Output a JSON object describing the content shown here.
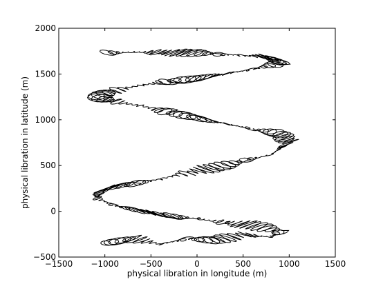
{
  "chart_data": {
    "type": "line",
    "title": "",
    "xlabel": "physical libration in longitude (m)",
    "ylabel": "physical libration in latitude (m)",
    "xlim": [
      -1500,
      1500
    ],
    "ylim": [
      -500,
      2000
    ],
    "xticks": [
      -1500,
      -1000,
      -500,
      0,
      500,
      1000,
      1500
    ],
    "yticks": [
      -500,
      0,
      500,
      1000,
      1500,
      2000
    ],
    "xtick_labels": [
      "−1500",
      "−1000",
      "−500",
      "0",
      "500",
      "1000",
      "1500"
    ],
    "ytick_labels": [
      "−500",
      "0",
      "500",
      "1000",
      "1500",
      "2000"
    ],
    "grid": false,
    "legend": "none",
    "line_color": "#000000",
    "series": [
      {
        "description_points": [
          {
            "x": -1000,
            "y": -350
          },
          {
            "x": -700,
            "y": -300
          },
          {
            "x": -400,
            "y": -360
          },
          {
            "x": -100,
            "y": -300
          },
          {
            "x": 200,
            "y": -320
          },
          {
            "x": 500,
            "y": -250
          },
          {
            "x": 800,
            "y": -280
          },
          {
            "x": 900,
            "y": -220
          },
          {
            "x": 600,
            "y": -150
          },
          {
            "x": 300,
            "y": -120
          },
          {
            "x": 0,
            "y": -80
          },
          {
            "x": -300,
            "y": -50
          },
          {
            "x": -600,
            "y": 0
          },
          {
            "x": -900,
            "y": 60
          },
          {
            "x": -1100,
            "y": 150
          },
          {
            "x": -1000,
            "y": 250
          },
          {
            "x": -700,
            "y": 300
          },
          {
            "x": -400,
            "y": 350
          },
          {
            "x": -100,
            "y": 420
          },
          {
            "x": 200,
            "y": 480
          },
          {
            "x": 500,
            "y": 550
          },
          {
            "x": 800,
            "y": 620
          },
          {
            "x": 1000,
            "y": 750
          },
          {
            "x": 900,
            "y": 850
          },
          {
            "x": 600,
            "y": 900
          },
          {
            "x": 300,
            "y": 960
          },
          {
            "x": 0,
            "y": 1020
          },
          {
            "x": -300,
            "y": 1080
          },
          {
            "x": -600,
            "y": 1150
          },
          {
            "x": -900,
            "y": 1200
          },
          {
            "x": -1100,
            "y": 1250
          },
          {
            "x": -900,
            "y": 1320
          },
          {
            "x": -600,
            "y": 1380
          },
          {
            "x": -300,
            "y": 1420
          },
          {
            "x": 0,
            "y": 1450
          },
          {
            "x": 300,
            "y": 1500
          },
          {
            "x": 600,
            "y": 1550
          },
          {
            "x": 900,
            "y": 1620
          },
          {
            "x": 800,
            "y": 1680
          },
          {
            "x": 500,
            "y": 1700
          },
          {
            "x": 200,
            "y": 1720
          },
          {
            "x": -100,
            "y": 1730
          },
          {
            "x": -400,
            "y": 1740
          },
          {
            "x": -700,
            "y": 1740
          },
          {
            "x": -1000,
            "y": 1730
          }
        ]
      }
    ]
  }
}
